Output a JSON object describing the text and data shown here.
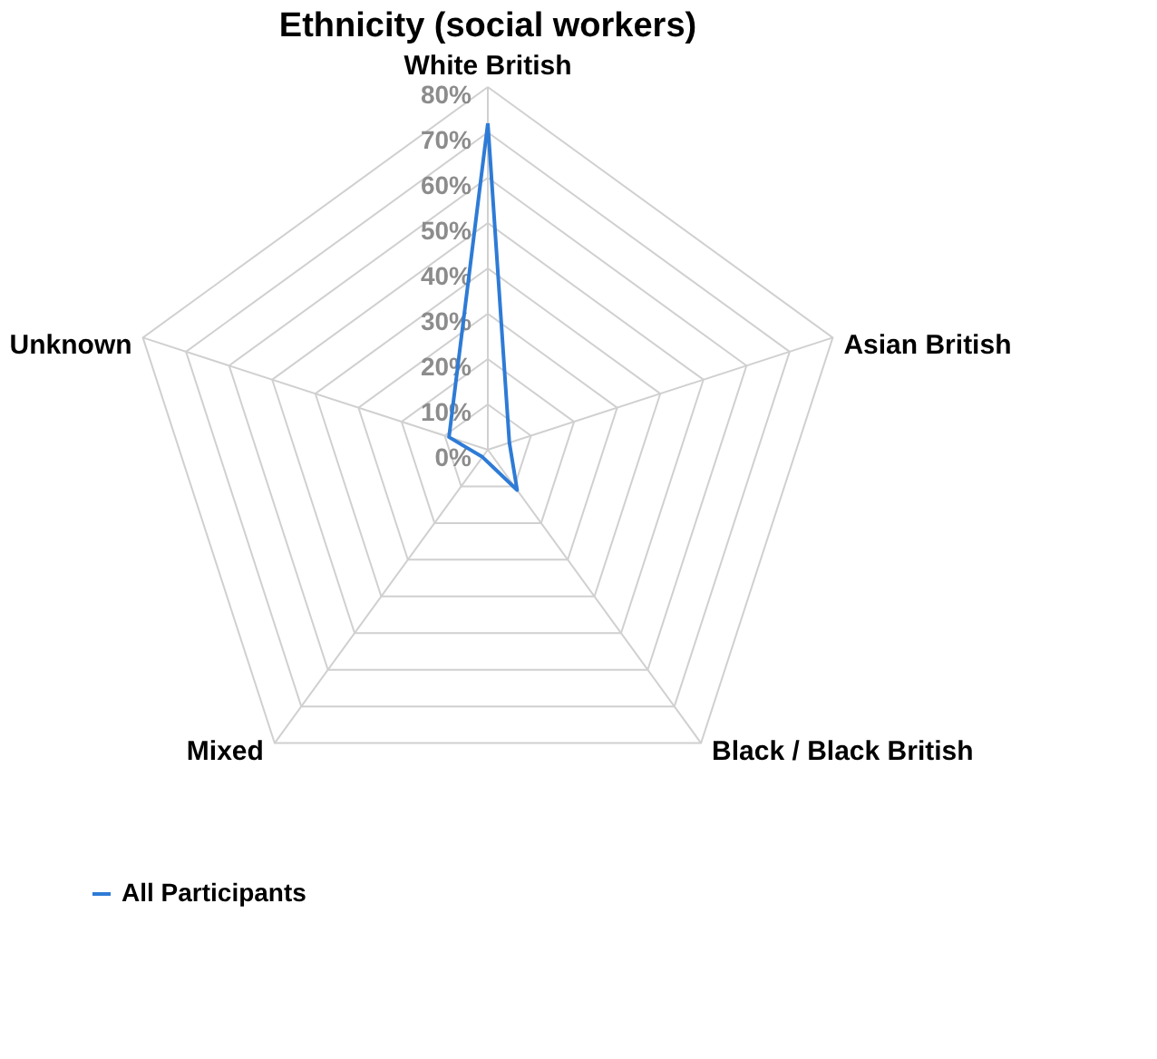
{
  "chart_data": {
    "type": "radar",
    "title": "Ethnicity (social workers)",
    "categories": [
      "White British",
      "Asian British",
      "Black / Black British",
      "Mixed",
      "Unknown"
    ],
    "series": [
      {
        "name": "All Participants",
        "color": "#2e7bd6",
        "values": [
          72,
          5,
          11,
          2,
          9
        ]
      }
    ],
    "ylim": [
      0,
      80
    ],
    "yticks": [
      {
        "value": 0,
        "label": "0%"
      },
      {
        "value": 10,
        "label": "10%"
      },
      {
        "value": 20,
        "label": "20%"
      },
      {
        "value": 30,
        "label": "30%"
      },
      {
        "value": 40,
        "label": "40%"
      },
      {
        "value": 50,
        "label": "50%"
      },
      {
        "value": 60,
        "label": "60%"
      },
      {
        "value": 70,
        "label": "70%"
      },
      {
        "value": 80,
        "label": "80%"
      }
    ],
    "grid": true,
    "legend": "bottom",
    "marker": "none",
    "line_style": "solid"
  }
}
